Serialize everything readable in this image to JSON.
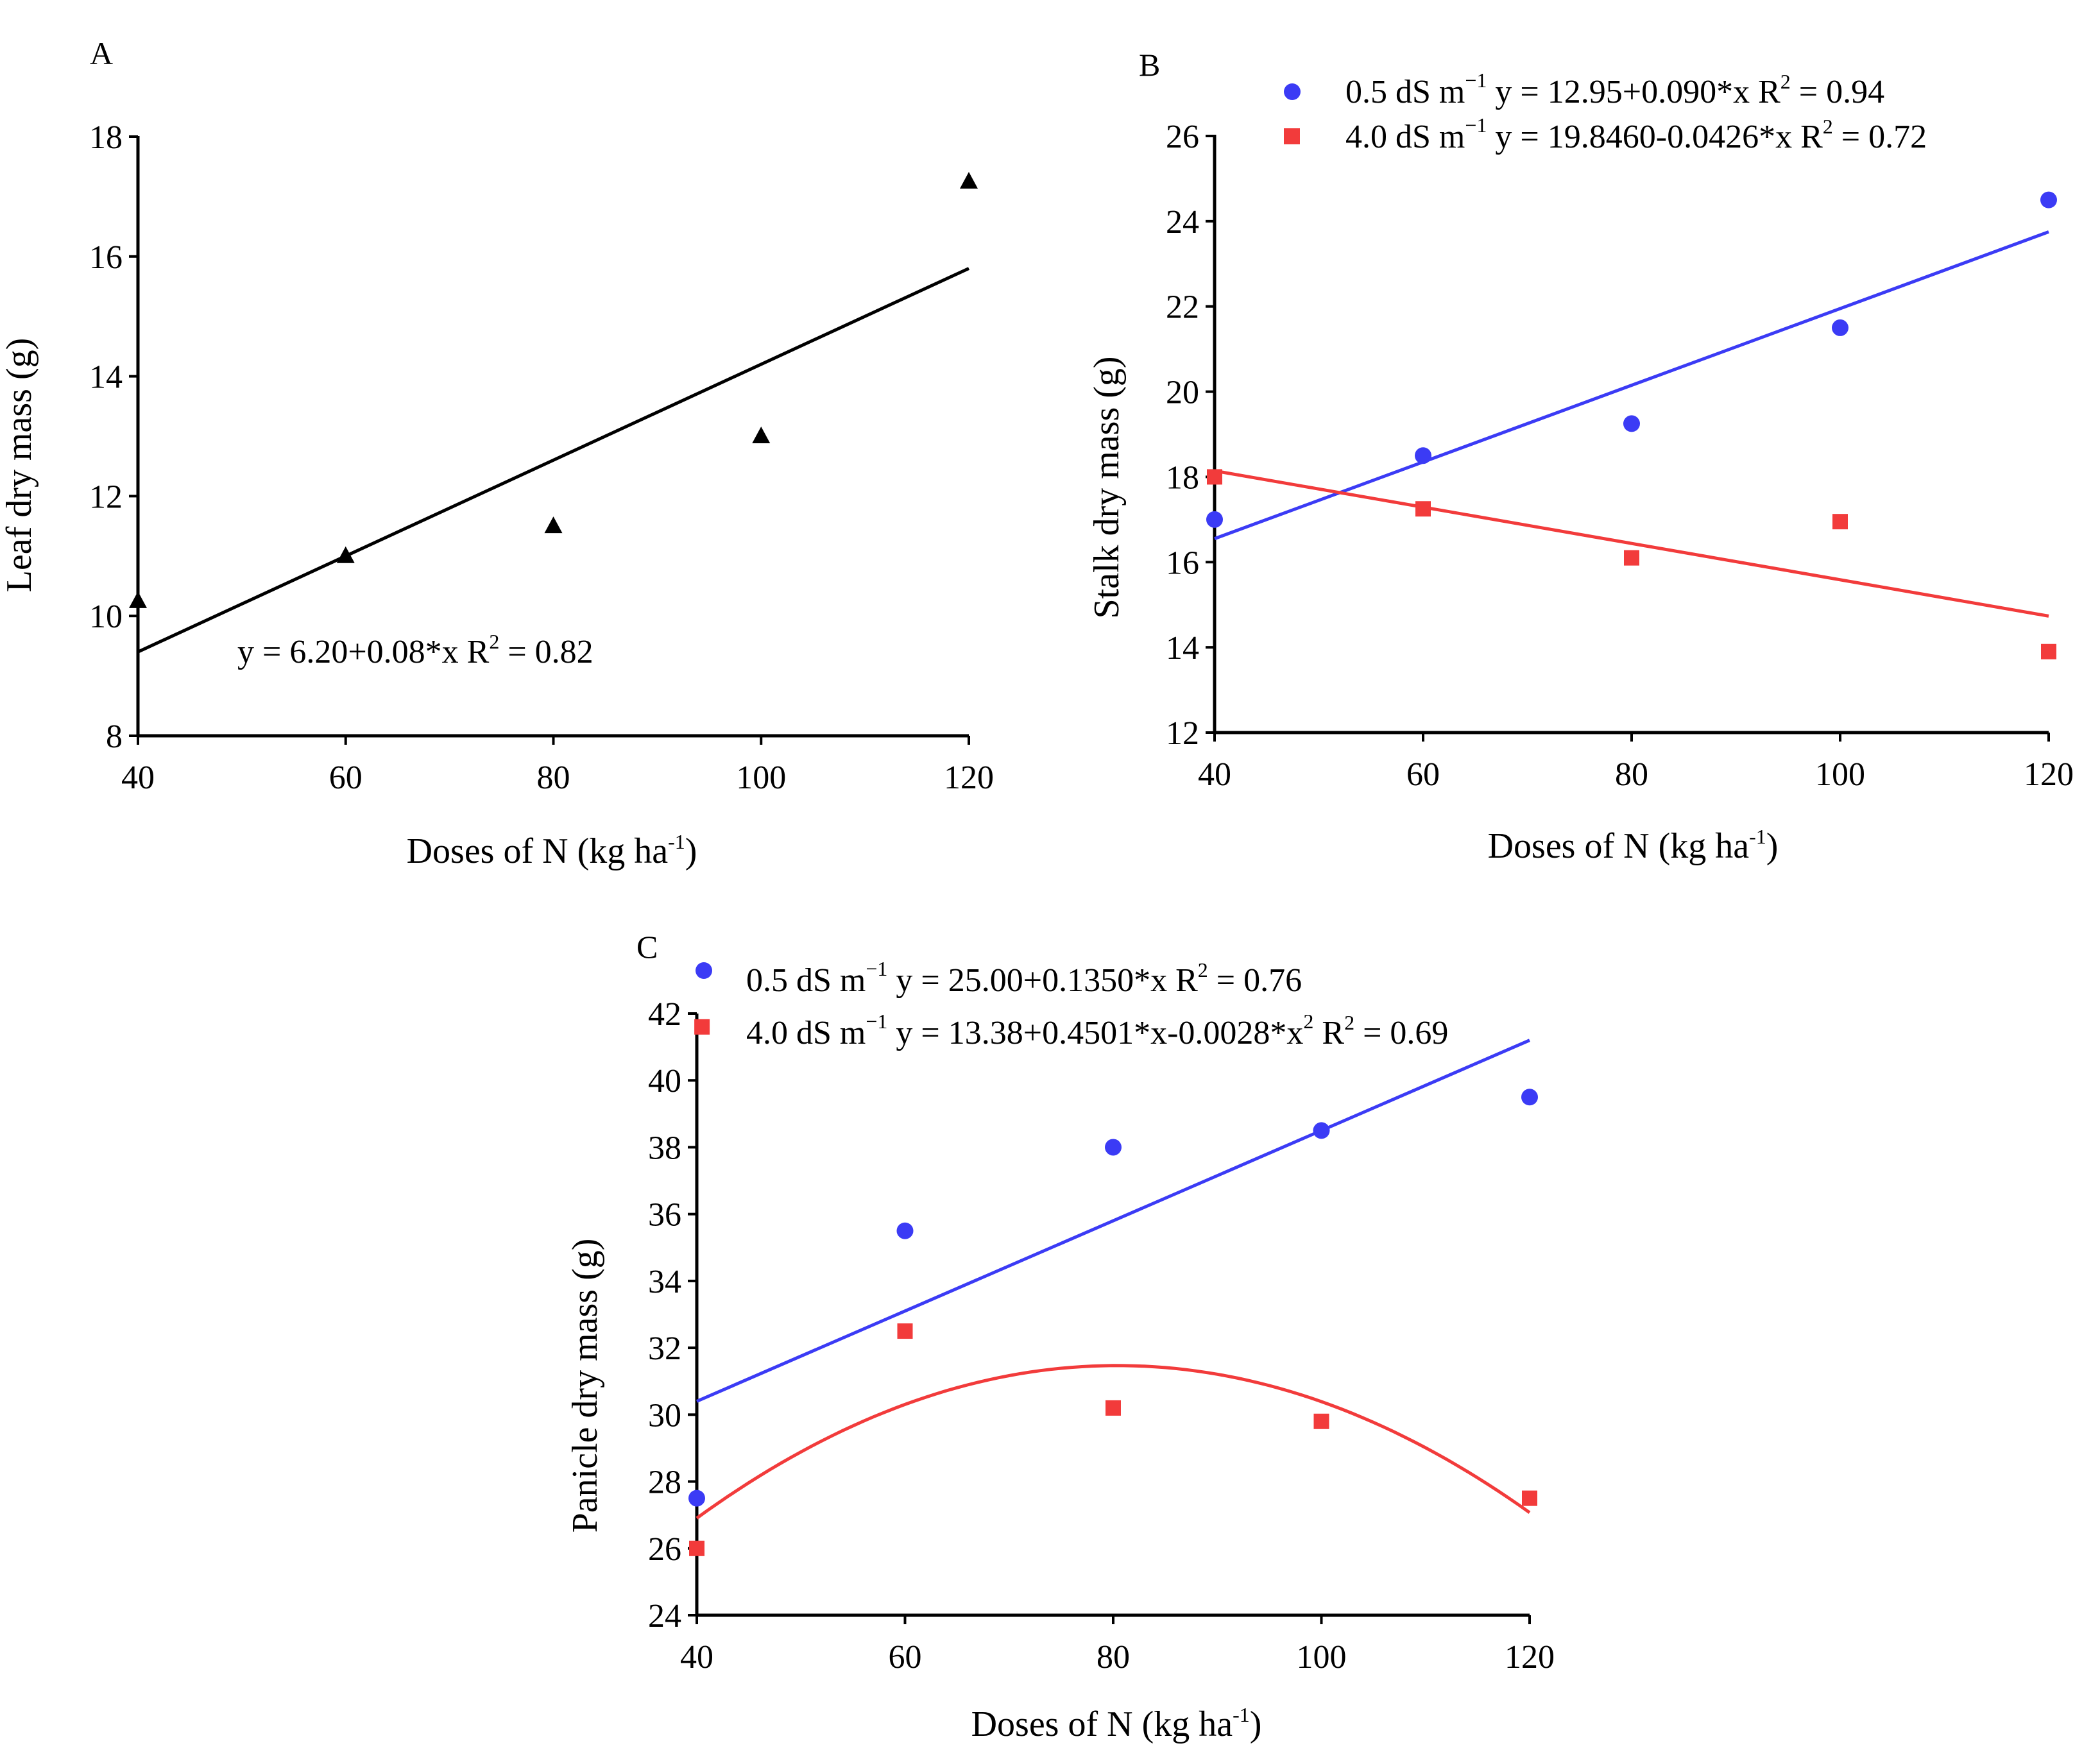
{
  "chart_data": [
    {
      "panel": "A",
      "type": "scatter",
      "xlabel": "Doses of N (kg ha-1)",
      "xlabel_base": "Doses of N (kg ha",
      "xlabel_sup": "-1",
      "xlabel_close": ")",
      "ylabel": "Leaf dry mass (g)",
      "xlim": [
        40,
        120
      ],
      "ylim": [
        8,
        18
      ],
      "xticks": [
        40,
        60,
        80,
        100,
        120
      ],
      "yticks": [
        8,
        10,
        12,
        14,
        16,
        18
      ],
      "series": [
        {
          "name": "",
          "color": "#000000",
          "marker": "triangle",
          "x": [
            40,
            60,
            80,
            100,
            120
          ],
          "y": [
            10.25,
            11.0,
            11.5,
            13.0,
            17.25
          ],
          "fit": {
            "type": "linear",
            "intercept": 6.2,
            "slope": 0.08,
            "xrange": [
              40,
              120
            ]
          },
          "equation": "y = 6.20+0.08*x  R",
          "r2_sup": "2",
          "r2_value": " = 0.82"
        }
      ]
    },
    {
      "panel": "B",
      "type": "scatter",
      "xlabel": "Doses of N (kg ha-1)",
      "xlabel_base": "Doses of N (kg ha",
      "xlabel_sup": "-1",
      "xlabel_close": ")",
      "ylabel": "Stalk dry mass (g)",
      "xlim": [
        40,
        120
      ],
      "ylim": [
        12,
        26
      ],
      "xticks": [
        40,
        60,
        80,
        100,
        120
      ],
      "yticks": [
        12,
        14,
        16,
        18,
        20,
        22,
        24,
        26
      ],
      "legend_position": "top",
      "series": [
        {
          "name": "0.5 dS m",
          "unit_sup": "−1",
          "equation": " y = 12.95+0.090*x  R",
          "r2_sup": "2",
          "r2_value": " = 0.94",
          "color": "#3b3bf5",
          "marker": "circle",
          "x": [
            40,
            60,
            80,
            100,
            120
          ],
          "y": [
            17.0,
            18.5,
            19.25,
            21.5,
            24.5
          ],
          "fit": {
            "type": "linear",
            "intercept": 12.95,
            "slope": 0.09,
            "xrange": [
              40,
              120
            ]
          }
        },
        {
          "name": "4.0 dS m",
          "unit_sup": "−1",
          "equation": " y = 19.8460-0.0426*x  R",
          "r2_sup": "2",
          "r2_value": " = 0.72",
          "color": "#f23b3b",
          "marker": "square",
          "x": [
            40,
            60,
            80,
            100,
            120
          ],
          "y": [
            18.0,
            17.25,
            16.1,
            16.95,
            13.9
          ],
          "fit": {
            "type": "linear",
            "intercept": 19.846,
            "slope": -0.0426,
            "xrange": [
              40,
              120
            ]
          }
        }
      ]
    },
    {
      "panel": "C",
      "type": "scatter",
      "xlabel": "Doses of N (kg ha-1)",
      "xlabel_base": "Doses of N (kg ha",
      "xlabel_sup": "-1",
      "xlabel_close": ")",
      "ylabel": "Panicle dry mass (g)",
      "xlim": [
        40,
        120
      ],
      "ylim": [
        24,
        42
      ],
      "xticks": [
        40,
        60,
        80,
        100,
        120
      ],
      "yticks": [
        24,
        26,
        28,
        30,
        32,
        34,
        36,
        38,
        40,
        42
      ],
      "legend_position": "top",
      "series": [
        {
          "name": "0.5 dS m",
          "unit_sup": "−1",
          "equation": " y = 25.00+0.1350*x  R",
          "r2_sup": "2",
          "r2_value": " = 0.76",
          "color": "#3b3bf5",
          "marker": "circle",
          "x": [
            40,
            60,
            80,
            100,
            120
          ],
          "y": [
            27.5,
            35.5,
            38.0,
            38.5,
            39.5
          ],
          "fit": {
            "type": "linear",
            "intercept": 25.0,
            "slope": 0.135,
            "xrange": [
              40,
              120
            ]
          }
        },
        {
          "name": "4.0 dS m",
          "unit_sup": "−1",
          "equation": " y = 13.38+0.4501*x-0.0028*x",
          "x2_sup": "2",
          "r2_label": "  R",
          "r2_sup": "2",
          "r2_value": " = 0.69",
          "color": "#f23b3b",
          "marker": "square",
          "x": [
            40,
            40.5,
            60,
            80,
            100,
            120
          ],
          "y": [
            26.0,
            41.6,
            32.5,
            30.2,
            29.8,
            27.5
          ],
          "fit": {
            "type": "quadratic",
            "c0": 13.38,
            "c1": 0.4501,
            "c2": -0.0028,
            "xrange": [
              40,
              120
            ]
          }
        }
      ]
    }
  ]
}
